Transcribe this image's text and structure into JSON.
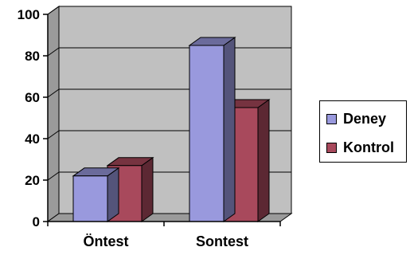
{
  "chart_data": {
    "type": "bar",
    "categories": [
      "Öntest",
      "Sontest"
    ],
    "series": [
      {
        "name": "Deney",
        "values": [
          22,
          85
        ],
        "color": "#9999dd"
      },
      {
        "name": "Kontrol",
        "values": [
          27,
          55
        ],
        "color": "#a8495c"
      }
    ],
    "ylim": [
      0,
      100
    ],
    "yticks": [
      "0",
      "20",
      "40",
      "60",
      "80",
      "100"
    ],
    "grid": true,
    "legend_position": "right",
    "style": "3d-clustered",
    "colors": {
      "wall": "#c0c0c0",
      "floor": "#9a9a9a"
    }
  }
}
